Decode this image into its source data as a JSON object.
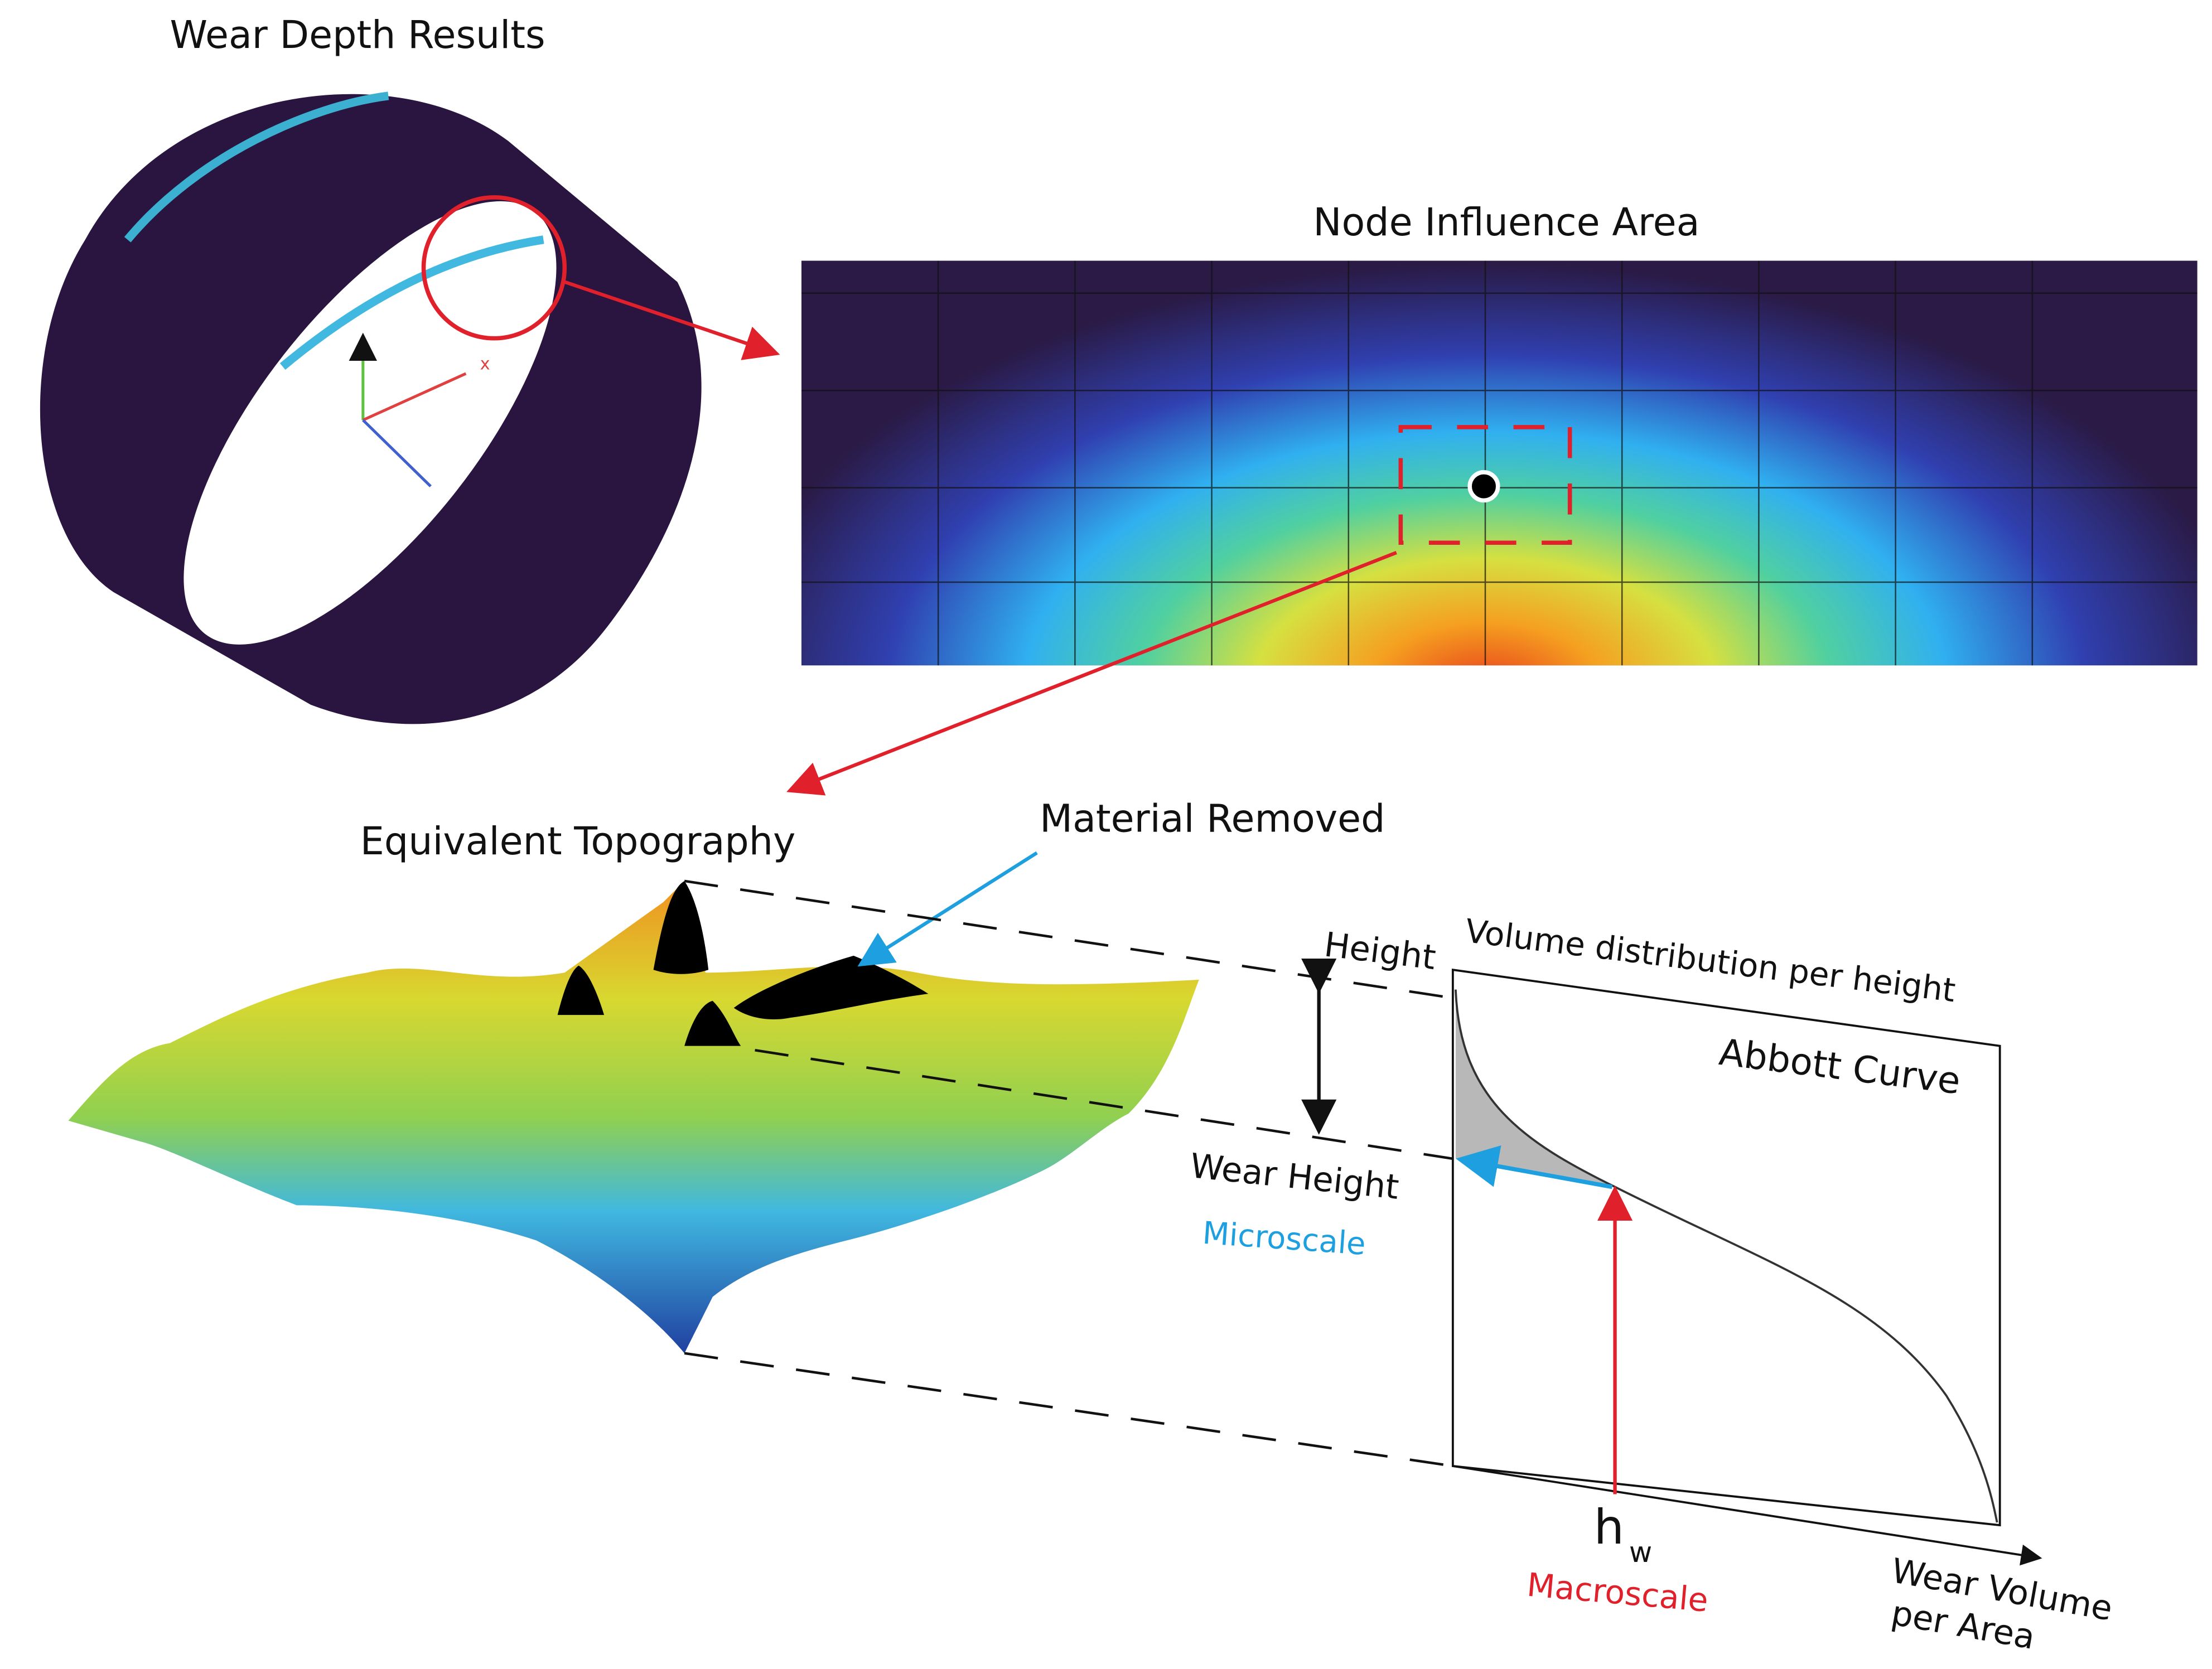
{
  "ring": {
    "title": "Wear Depth Results",
    "axis_label": "x"
  },
  "node_area": {
    "title": "Node Influence Area"
  },
  "topography": {
    "title": "Equivalent Topography",
    "annotation": "Material Removed"
  },
  "abbott": {
    "y_label": "Height",
    "y_sublabel": "Volume distribution per height",
    "title": "Abbott Curve",
    "wear_height": "Wear Height",
    "microscale": "Microscale",
    "hw_main": "h",
    "hw_sub": "w",
    "macroscale": "Macroscale",
    "x_label_1": "Wear Volume",
    "x_label_2": "per Area"
  }
}
